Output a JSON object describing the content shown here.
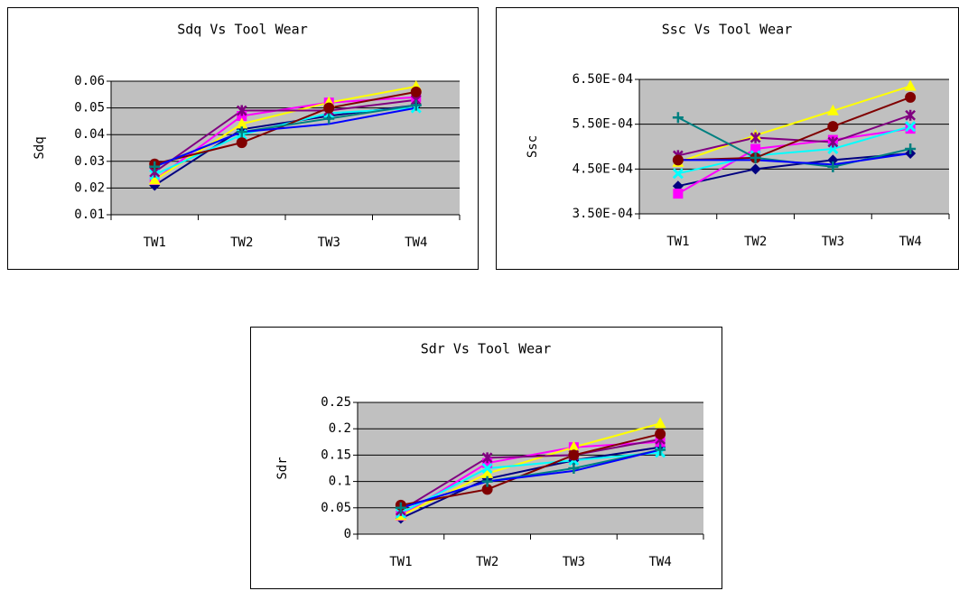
{
  "chart_data": [
    {
      "type": "line",
      "title": "Sdq Vs Tool Wear",
      "y_label": "Sdq",
      "categories": [
        "TW1",
        "TW2",
        "TW3",
        "TW4"
      ],
      "ylim": [
        0.01,
        0.06
      ],
      "yticks": [
        0.01,
        0.02,
        0.03,
        0.04,
        0.05,
        0.06
      ],
      "grid": true,
      "series": [
        {
          "color": "#000080",
          "marker": "diamond",
          "values": [
            0.021,
            0.042,
            0.047,
            0.051
          ]
        },
        {
          "color": "#ff00ff",
          "marker": "square",
          "values": [
            0.023,
            0.047,
            0.052,
            0.054
          ]
        },
        {
          "color": "#ffff00",
          "marker": "triangle",
          "values": [
            0.023,
            0.044,
            0.052,
            0.058
          ]
        },
        {
          "color": "#00ffff",
          "marker": "x",
          "values": [
            0.025,
            0.04,
            0.048,
            0.05
          ]
        },
        {
          "color": "#800080",
          "marker": "star",
          "values": [
            0.026,
            0.049,
            0.049,
            0.053
          ]
        },
        {
          "color": "#800000",
          "marker": "circle",
          "values": [
            0.029,
            0.037,
            0.05,
            0.056
          ]
        },
        {
          "color": "#008080",
          "marker": "plus",
          "values": [
            0.028,
            0.041,
            0.046,
            0.051
          ]
        },
        {
          "color": "#0000ff",
          "values": [
            0.028,
            0.041,
            0.044,
            0.05
          ]
        }
      ]
    },
    {
      "type": "line",
      "title": "Ssc Vs Tool Wear",
      "y_label": "Ssc",
      "categories": [
        "TW1",
        "TW2",
        "TW3",
        "TW4"
      ],
      "ylim": [
        0.00035,
        0.00065
      ],
      "yticks": [
        {
          "value": 0.00035,
          "label": "3.50E-04"
        },
        {
          "value": 0.00045,
          "label": "4.50E-04"
        },
        {
          "value": 0.00055,
          "label": "5.50E-04"
        },
        {
          "value": 0.00065,
          "label": "6.50E-04"
        }
      ],
      "grid": true,
      "series": [
        {
          "color": "#000080",
          "marker": "diamond",
          "values": [
            0.000412,
            0.00045,
            0.00047,
            0.000485
          ]
        },
        {
          "color": "#ff00ff",
          "marker": "square",
          "values": [
            0.000395,
            0.000495,
            0.000515,
            0.00054
          ]
        },
        {
          "color": "#ffff00",
          "marker": "triangle",
          "values": [
            0.000465,
            0.000525,
            0.00058,
            0.000635
          ]
        },
        {
          "color": "#00ffff",
          "marker": "x",
          "values": [
            0.00044,
            0.00048,
            0.000495,
            0.000545
          ]
        },
        {
          "color": "#800080",
          "marker": "star",
          "values": [
            0.00048,
            0.00052,
            0.00051,
            0.00057
          ]
        },
        {
          "color": "#800000",
          "marker": "circle",
          "values": [
            0.00047,
            0.000475,
            0.000545,
            0.00061
          ]
        },
        {
          "color": "#008080",
          "marker": "plus",
          "values": [
            0.000565,
            0.000475,
            0.000455,
            0.000495
          ]
        },
        {
          "color": "#0000ff",
          "values": [
            0.00047,
            0.00047,
            0.00046,
            0.000485
          ]
        }
      ]
    },
    {
      "type": "line",
      "title": "Sdr Vs Tool Wear",
      "y_label": "Sdr",
      "categories": [
        "TW1",
        "TW2",
        "TW3",
        "TW4"
      ],
      "ylim": [
        0,
        0.25
      ],
      "yticks": [
        0,
        0.05,
        0.1,
        0.15,
        0.2,
        0.25
      ],
      "grid": true,
      "series": [
        {
          "color": "#000080",
          "marker": "diamond",
          "values": [
            0.03,
            0.105,
            0.14,
            0.165
          ]
        },
        {
          "color": "#ff00ff",
          "marker": "square",
          "values": [
            0.035,
            0.135,
            0.165,
            0.175
          ]
        },
        {
          "color": "#ffff00",
          "marker": "triangle",
          "values": [
            0.035,
            0.115,
            0.165,
            0.21
          ]
        },
        {
          "color": "#00ffff",
          "marker": "x",
          "values": [
            0.04,
            0.125,
            0.14,
            0.155
          ]
        },
        {
          "color": "#800080",
          "marker": "star",
          "values": [
            0.045,
            0.145,
            0.15,
            0.18
          ]
        },
        {
          "color": "#800000",
          "marker": "circle",
          "values": [
            0.055,
            0.085,
            0.15,
            0.19
          ]
        },
        {
          "color": "#008080",
          "marker": "plus",
          "values": [
            0.05,
            0.1,
            0.125,
            0.16
          ]
        },
        {
          "color": "#0000ff",
          "values": [
            0.05,
            0.1,
            0.12,
            0.16
          ]
        }
      ]
    }
  ]
}
